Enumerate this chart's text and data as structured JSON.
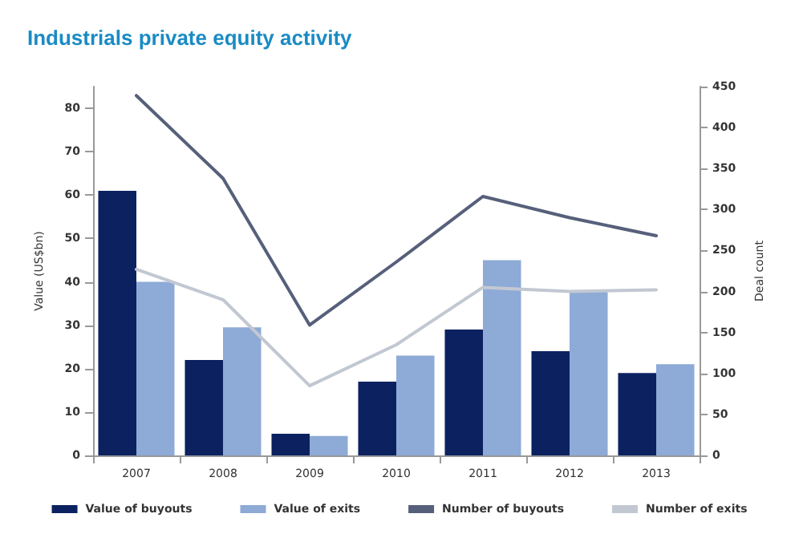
{
  "chart_data": {
    "type": "bar",
    "title": "Industrials private equity activity",
    "ylabel": "Value (US$bn)",
    "y2label": "Deal count",
    "categories": [
      "2007",
      "2008",
      "2009",
      "2010",
      "2011",
      "2012",
      "2013"
    ],
    "series": [
      {
        "name": "Value of buyouts",
        "color": "#0b2160",
        "values": [
          61,
          22,
          5,
          17,
          29,
          24,
          19
        ]
      },
      {
        "name": "Value of exits",
        "color": "#8eaad6",
        "values": [
          40,
          29.5,
          4.5,
          23,
          45,
          38,
          21
        ]
      },
      {
        "name": "Number of buyouts",
        "type": "line",
        "axis": "y2",
        "color": "#56607a",
        "values": [
          439,
          338,
          159,
          236,
          316,
          290,
          268
        ]
      },
      {
        "name": "Number of exits",
        "type": "line",
        "axis": "y2",
        "color": "#c2c8d2",
        "values": [
          227,
          190,
          85,
          135,
          205,
          200,
          202
        ]
      }
    ],
    "ylim": [
      0,
      85
    ],
    "yticks": [
      0,
      10,
      20,
      30,
      40,
      50,
      60,
      70,
      80
    ],
    "y2lim": [
      0,
      450
    ],
    "y2ticks": [
      0,
      50,
      100,
      150,
      200,
      250,
      300,
      350,
      400,
      450
    ],
    "grid": false,
    "legend": "bottom",
    "marker": "none",
    "line_style": "solid"
  }
}
